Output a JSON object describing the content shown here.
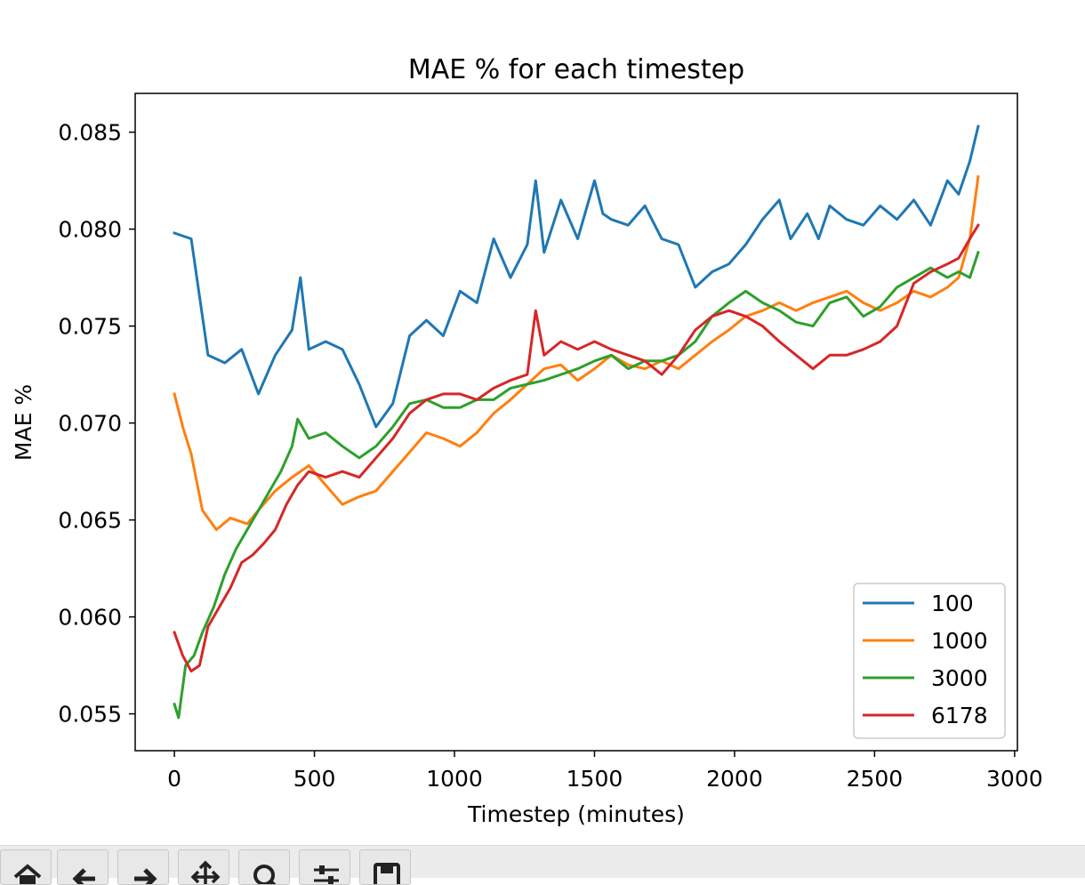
{
  "chart_data": {
    "type": "line",
    "title": "MAE % for each timestep",
    "xlabel": "Timestep (minutes)",
    "ylabel": "MAE %",
    "xlim": [
      -140,
      3010
    ],
    "ylim": [
      0.0531,
      0.087
    ],
    "xticks": [
      0,
      500,
      1000,
      1500,
      2000,
      2500,
      3000
    ],
    "xtick_labels": [
      "0",
      "500",
      "1000",
      "1500",
      "2000",
      "2500",
      "3000"
    ],
    "yticks": [
      0.055,
      0.06,
      0.065,
      0.07,
      0.075,
      0.08,
      0.085
    ],
    "ytick_labels": [
      "0.055",
      "0.060",
      "0.065",
      "0.070",
      "0.075",
      "0.080",
      "0.085"
    ],
    "grid": false,
    "legend": "lower-right",
    "series": [
      {
        "name": "100",
        "color": "#1f77b4",
        "x": [
          0,
          60,
          120,
          180,
          240,
          300,
          360,
          420,
          450,
          480,
          540,
          600,
          660,
          720,
          780,
          840,
          900,
          960,
          1020,
          1080,
          1140,
          1200,
          1260,
          1290,
          1320,
          1380,
          1440,
          1500,
          1530,
          1560,
          1620,
          1680,
          1740,
          1800,
          1860,
          1920,
          1980,
          2040,
          2100,
          2160,
          2200,
          2260,
          2300,
          2340,
          2400,
          2460,
          2520,
          2580,
          2640,
          2700,
          2760,
          2800,
          2840,
          2870
        ],
        "y": [
          0.0798,
          0.0795,
          0.0735,
          0.0731,
          0.0738,
          0.0715,
          0.0735,
          0.0748,
          0.0775,
          0.0738,
          0.0742,
          0.0738,
          0.072,
          0.0698,
          0.071,
          0.0745,
          0.0753,
          0.0745,
          0.0768,
          0.0762,
          0.0795,
          0.0775,
          0.0792,
          0.0825,
          0.0788,
          0.0815,
          0.0795,
          0.0825,
          0.0808,
          0.0805,
          0.0802,
          0.0812,
          0.0795,
          0.0792,
          0.077,
          0.0778,
          0.0782,
          0.0792,
          0.0805,
          0.0815,
          0.0795,
          0.0808,
          0.0795,
          0.0812,
          0.0805,
          0.0802,
          0.0812,
          0.0805,
          0.0815,
          0.0802,
          0.0825,
          0.0818,
          0.0835,
          0.0853
        ]
      },
      {
        "name": "1000",
        "color": "#ff7f0e",
        "x": [
          0,
          30,
          60,
          100,
          150,
          200,
          260,
          300,
          360,
          420,
          480,
          540,
          600,
          660,
          720,
          780,
          840,
          900,
          960,
          1020,
          1080,
          1140,
          1200,
          1260,
          1320,
          1380,
          1440,
          1500,
          1560,
          1620,
          1680,
          1740,
          1800,
          1860,
          1920,
          1980,
          2040,
          2100,
          2160,
          2220,
          2280,
          2340,
          2400,
          2460,
          2520,
          2580,
          2640,
          2700,
          2760,
          2800,
          2840,
          2870
        ],
        "y": [
          0.0715,
          0.0698,
          0.0684,
          0.0655,
          0.0645,
          0.0651,
          0.0648,
          0.0655,
          0.0665,
          0.0672,
          0.0678,
          0.0668,
          0.0658,
          0.0662,
          0.0665,
          0.0675,
          0.0685,
          0.0695,
          0.0692,
          0.0688,
          0.0695,
          0.0705,
          0.0712,
          0.072,
          0.0728,
          0.073,
          0.0722,
          0.0728,
          0.0735,
          0.073,
          0.0728,
          0.0732,
          0.0728,
          0.0735,
          0.0742,
          0.0748,
          0.0755,
          0.0758,
          0.0762,
          0.0758,
          0.0762,
          0.0765,
          0.0768,
          0.0762,
          0.0758,
          0.0762,
          0.0768,
          0.0765,
          0.077,
          0.0775,
          0.0795,
          0.0827
        ]
      },
      {
        "name": "3000",
        "color": "#2ca02c",
        "x": [
          0,
          15,
          40,
          70,
          100,
          140,
          180,
          220,
          260,
          300,
          340,
          380,
          420,
          440,
          480,
          540,
          600,
          660,
          720,
          780,
          840,
          900,
          960,
          1020,
          1080,
          1140,
          1200,
          1260,
          1320,
          1380,
          1440,
          1500,
          1560,
          1620,
          1680,
          1740,
          1800,
          1860,
          1920,
          1980,
          2040,
          2100,
          2160,
          2220,
          2280,
          2340,
          2400,
          2460,
          2520,
          2580,
          2640,
          2700,
          2760,
          2800,
          2840,
          2870
        ],
        "y": [
          0.0555,
          0.0548,
          0.0575,
          0.058,
          0.0592,
          0.0605,
          0.0622,
          0.0635,
          0.0645,
          0.0655,
          0.0665,
          0.0675,
          0.0688,
          0.0702,
          0.0692,
          0.0695,
          0.0688,
          0.0682,
          0.0688,
          0.0698,
          0.071,
          0.0712,
          0.0708,
          0.0708,
          0.0712,
          0.0712,
          0.0718,
          0.072,
          0.0722,
          0.0725,
          0.0728,
          0.0732,
          0.0735,
          0.0728,
          0.0732,
          0.0732,
          0.0735,
          0.0742,
          0.0755,
          0.0762,
          0.0768,
          0.0762,
          0.0758,
          0.0752,
          0.075,
          0.0762,
          0.0765,
          0.0755,
          0.076,
          0.077,
          0.0775,
          0.078,
          0.0775,
          0.0778,
          0.0775,
          0.0788
        ]
      },
      {
        "name": "6178",
        "color": "#d62728",
        "x": [
          0,
          30,
          60,
          90,
          120,
          160,
          200,
          240,
          280,
          320,
          360,
          400,
          440,
          480,
          540,
          600,
          660,
          720,
          780,
          840,
          900,
          960,
          1020,
          1080,
          1140,
          1200,
          1260,
          1290,
          1320,
          1380,
          1440,
          1500,
          1560,
          1620,
          1680,
          1740,
          1800,
          1860,
          1920,
          1980,
          2040,
          2100,
          2160,
          2220,
          2280,
          2340,
          2400,
          2460,
          2520,
          2580,
          2640,
          2700,
          2760,
          2800,
          2840,
          2870
        ],
        "y": [
          0.0592,
          0.058,
          0.0572,
          0.0575,
          0.0595,
          0.0605,
          0.0615,
          0.0628,
          0.0632,
          0.0638,
          0.0645,
          0.0658,
          0.0668,
          0.0675,
          0.0672,
          0.0675,
          0.0672,
          0.0682,
          0.0692,
          0.0705,
          0.0712,
          0.0715,
          0.0715,
          0.0712,
          0.0718,
          0.0722,
          0.0725,
          0.0758,
          0.0735,
          0.0742,
          0.0738,
          0.0742,
          0.0738,
          0.0735,
          0.0732,
          0.0725,
          0.0735,
          0.0748,
          0.0755,
          0.0758,
          0.0755,
          0.075,
          0.0742,
          0.0735,
          0.0728,
          0.0735,
          0.0735,
          0.0738,
          0.0742,
          0.075,
          0.0772,
          0.0778,
          0.0782,
          0.0785,
          0.0795,
          0.0802
        ]
      }
    ]
  },
  "toolbar": {
    "buttons": [
      {
        "icon": "home-icon"
      },
      {
        "icon": "back-arrow-icon"
      },
      {
        "icon": "forward-arrow-icon"
      },
      {
        "icon": "pan-icon"
      },
      {
        "icon": "zoom-icon"
      },
      {
        "icon": "configure-subplots-icon"
      },
      {
        "icon": "save-icon"
      }
    ]
  }
}
